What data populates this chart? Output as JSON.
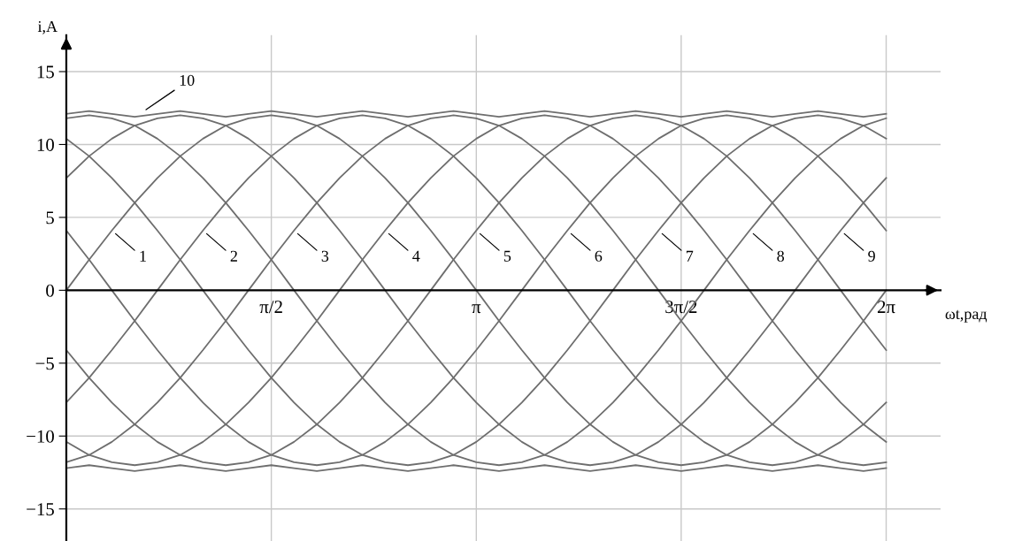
{
  "chart_data": {
    "type": "line",
    "xlabel": "ωt,рад",
    "ylabel": "i,A",
    "x": [
      0,
      0.175,
      0.349,
      0.524,
      0.698,
      0.873,
      1.047,
      1.222,
      1.396,
      1.571,
      1.745,
      1.92,
      2.094,
      2.269,
      2.443,
      2.618,
      2.793,
      2.967,
      3.142,
      3.316,
      3.491,
      3.665,
      3.84,
      4.014,
      4.189,
      4.363,
      4.538,
      4.712,
      4.887,
      5.061,
      5.236,
      5.411,
      5.585,
      5.76,
      5.934,
      6.109,
      6.283
    ],
    "series": [
      {
        "color": "#6e6e6e",
        "values": [
          0,
          2.1,
          4.1,
          6.0,
          7.7,
          9.2,
          10.4,
          11.3,
          11.8,
          12.0,
          11.8,
          11.3,
          10.4,
          9.2,
          7.7,
          6.0,
          4.1,
          2.1,
          0,
          -2.1,
          -4.1,
          -6.0,
          -7.7,
          -9.2,
          -10.4,
          -11.3,
          -11.8,
          -12.0,
          -11.8,
          -11.3,
          -10.4,
          -9.2,
          -7.7,
          -6.0,
          -4.1,
          -2.1,
          0
        ]
      },
      {
        "color": "#6e6e6e",
        "values": [
          -7.7,
          -6.0,
          -4.1,
          -2.1,
          0,
          2.1,
          4.1,
          6.0,
          7.7,
          9.2,
          10.4,
          11.3,
          11.8,
          12.0,
          11.8,
          11.3,
          10.4,
          9.2,
          7.7,
          6.0,
          4.1,
          2.1,
          0,
          -2.1,
          -4.1,
          -6.0,
          -7.7,
          -9.2,
          -10.4,
          -11.3,
          -11.8,
          -12.0,
          -11.8,
          -11.3,
          -10.4,
          -9.2,
          -7.7
        ]
      },
      {
        "color": "#6e6e6e",
        "values": [
          -11.8,
          -11.3,
          -10.4,
          -9.2,
          -7.7,
          -6.0,
          -4.1,
          -2.1,
          0,
          2.1,
          4.1,
          6.0,
          7.7,
          9.2,
          10.4,
          11.3,
          11.8,
          12.0,
          11.8,
          11.3,
          10.4,
          9.2,
          7.7,
          6.0,
          4.1,
          2.1,
          0,
          -2.1,
          -4.1,
          -6.0,
          -7.7,
          -9.2,
          -10.4,
          -11.3,
          -11.8,
          -12.0,
          -11.8
        ]
      },
      {
        "color": "#6e6e6e",
        "values": [
          -10.4,
          -11.3,
          -11.8,
          -12.0,
          -11.8,
          -11.3,
          -10.4,
          -9.2,
          -7.7,
          -6.0,
          -4.1,
          -2.1,
          0,
          2.1,
          4.1,
          6.0,
          7.7,
          9.2,
          10.4,
          11.3,
          11.8,
          12.0,
          11.8,
          11.3,
          10.4,
          9.2,
          7.7,
          6.0,
          4.1,
          2.1,
          0,
          -2.1,
          -4.1,
          -6.0,
          -7.7,
          -9.2,
          -10.4
        ]
      },
      {
        "color": "#6e6e6e",
        "values": [
          -4.1,
          -6.0,
          -7.7,
          -9.2,
          -10.4,
          -11.3,
          -11.8,
          -12.0,
          -11.8,
          -11.3,
          -10.4,
          -9.2,
          -7.7,
          -6.0,
          -4.1,
          -2.1,
          0,
          2.1,
          4.1,
          6.0,
          7.7,
          9.2,
          10.4,
          11.3,
          11.8,
          12.0,
          11.8,
          11.3,
          10.4,
          9.2,
          7.7,
          6.0,
          4.1,
          2.1,
          0,
          -2.1,
          -4.1
        ]
      },
      {
        "color": "#6e6e6e",
        "values": [
          4.1,
          2.1,
          0,
          -2.1,
          -4.1,
          -6.0,
          -7.7,
          -9.2,
          -10.4,
          -11.3,
          -11.8,
          -12.0,
          -11.8,
          -11.3,
          -10.4,
          -9.2,
          -7.7,
          -6.0,
          -4.1,
          -2.1,
          0,
          2.1,
          4.1,
          6.0,
          7.7,
          9.2,
          10.4,
          11.3,
          11.8,
          12.0,
          11.8,
          11.3,
          10.4,
          9.2,
          7.7,
          6.0,
          4.1
        ]
      },
      {
        "color": "#6e6e6e",
        "values": [
          10.4,
          9.2,
          7.7,
          6.0,
          4.1,
          2.1,
          0,
          -2.1,
          -4.1,
          -6.0,
          -7.7,
          -9.2,
          -10.4,
          -11.3,
          -11.8,
          -12.0,
          -11.8,
          -11.3,
          -10.4,
          -9.2,
          -7.7,
          -6.0,
          -4.1,
          -2.1,
          0,
          2.1,
          4.1,
          6.0,
          7.7,
          9.2,
          10.4,
          11.3,
          11.8,
          12.0,
          11.8,
          11.3,
          10.4
        ]
      },
      {
        "color": "#6e6e6e",
        "values": [
          11.8,
          12.0,
          11.8,
          11.3,
          10.4,
          9.2,
          7.7,
          6.0,
          4.1,
          2.1,
          0,
          -2.1,
          -4.1,
          -6.0,
          -7.7,
          -9.2,
          -10.4,
          -11.3,
          -11.8,
          -12.0,
          -11.8,
          -11.3,
          -10.4,
          -9.2,
          -7.7,
          -6.0,
          -4.1,
          -2.1,
          0,
          2.1,
          4.1,
          6.0,
          7.7,
          9.2,
          10.4,
          11.3,
          11.8
        ]
      },
      {
        "color": "#6e6e6e",
        "values": [
          7.7,
          9.2,
          10.4,
          11.3,
          11.8,
          12.0,
          11.8,
          11.3,
          10.4,
          9.2,
          7.7,
          6.0,
          4.1,
          2.1,
          0,
          -2.1,
          -4.1,
          -6.0,
          -7.7,
          -9.2,
          -10.4,
          -11.3,
          -11.8,
          -12.0,
          -11.8,
          -11.3,
          -10.4,
          -9.2,
          -7.7,
          -6.0,
          -4.1,
          -2.1,
          0,
          2.1,
          4.1,
          6.0,
          7.7
        ]
      },
      {
        "color": "#6e6e6e",
        "values": [
          12.1,
          12.3,
          12.1,
          11.9,
          12.1,
          12.3,
          12.1,
          11.9,
          12.1,
          12.3,
          12.1,
          11.9,
          12.1,
          12.3,
          12.1,
          11.9,
          12.1,
          12.3,
          12.1,
          11.9,
          12.1,
          12.3,
          12.1,
          11.9,
          12.1,
          12.3,
          12.1,
          11.9,
          12.1,
          12.3,
          12.1,
          11.9,
          12.1,
          12.3,
          12.1,
          11.9,
          12.1
        ]
      },
      {
        "color": "#6e6e6e",
        "values": [
          -12.2,
          -12.0,
          -12.2,
          -12.4,
          -12.2,
          -12.0,
          -12.2,
          -12.4,
          -12.2,
          -12.0,
          -12.2,
          -12.4,
          -12.2,
          -12.0,
          -12.2,
          -12.4,
          -12.2,
          -12.0,
          -12.2,
          -12.4,
          -12.2,
          -12.0,
          -12.2,
          -12.4,
          -12.2,
          -12.0,
          -12.2,
          -12.4,
          -12.2,
          -12.0,
          -12.2,
          -12.4,
          -12.2,
          -12.0,
          -12.2,
          -12.4,
          -12.2
        ]
      }
    ],
    "xlim": [
      0,
      6.7
    ],
    "ylim": [
      -17.2,
      17.5
    ],
    "xticks": [
      {
        "value": 1.571,
        "label": "π/2"
      },
      {
        "value": 3.142,
        "label": "π"
      },
      {
        "value": 4.712,
        "label": "3π/2"
      },
      {
        "value": 6.283,
        "label": "2π"
      }
    ],
    "yticks": [
      -15,
      -10,
      -5,
      0,
      5,
      10,
      15
    ],
    "grid": true,
    "line_style": "solid",
    "annotations": [
      {
        "text": "1",
        "x": 0.349,
        "y": 4.1
      },
      {
        "text": "2",
        "x": 1.047,
        "y": 4.1
      },
      {
        "text": "3",
        "x": 1.745,
        "y": 4.1
      },
      {
        "text": "4",
        "x": 2.443,
        "y": 4.1
      },
      {
        "text": "5",
        "x": 3.142,
        "y": 4.1
      },
      {
        "text": "6",
        "x": 3.84,
        "y": 4.1
      },
      {
        "text": "7",
        "x": 4.538,
        "y": 4.1
      },
      {
        "text": "8",
        "x": 5.236,
        "y": 4.1
      },
      {
        "text": "9",
        "x": 5.934,
        "y": 4.1
      },
      {
        "text": "10",
        "x": 0.58,
        "y": 12.2
      }
    ]
  }
}
